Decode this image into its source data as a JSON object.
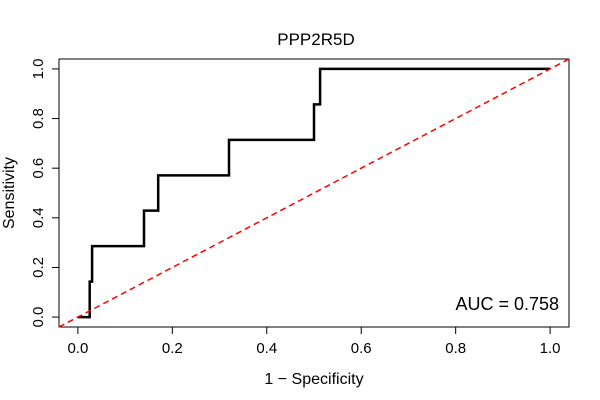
{
  "chart_data": {
    "type": "line",
    "title": "PPP2R5D",
    "xlabel": "1 − Specificity",
    "ylabel": "Sensitivity",
    "xlim": [
      -0.04,
      1.04
    ],
    "ylim": [
      -0.04,
      1.04
    ],
    "x_ticks": [
      0.0,
      0.2,
      0.4,
      0.6,
      0.8,
      1.0
    ],
    "x_tick_labels": [
      "0.0",
      "0.2",
      "0.4",
      "0.6",
      "0.8",
      "1.0"
    ],
    "y_ticks": [
      0.0,
      0.2,
      0.4,
      0.6,
      0.8,
      1.0
    ],
    "y_tick_labels": [
      "0.0",
      "0.2",
      "0.4",
      "0.6",
      "0.8",
      "1.0"
    ],
    "series": [
      {
        "style": "solid",
        "color": "#000000",
        "x": [
          0.0,
          0.02,
          0.02,
          0.025,
          0.025,
          0.03,
          0.03,
          0.14,
          0.14,
          0.16,
          0.16,
          0.17,
          0.17,
          0.32,
          0.32,
          0.5,
          0.5,
          0.505,
          0.505,
          0.513,
          0.513,
          1.0
        ],
        "y": [
          0.0,
          0.0,
          0.0,
          0.0,
          0.143,
          0.143,
          0.286,
          0.286,
          0.429,
          0.429,
          0.429,
          0.429,
          0.571,
          0.571,
          0.714,
          0.714,
          0.857,
          0.857,
          0.857,
          0.857,
          1.0,
          1.0
        ]
      },
      {
        "style": "dashed",
        "color": "#ff0000",
        "x": [
          -0.04,
          1.04
        ],
        "y": [
          -0.04,
          1.04
        ]
      }
    ],
    "annotations": [
      {
        "text": "AUC = 0.758",
        "position": "bottom-right"
      }
    ],
    "grid": false,
    "legend": "none"
  }
}
